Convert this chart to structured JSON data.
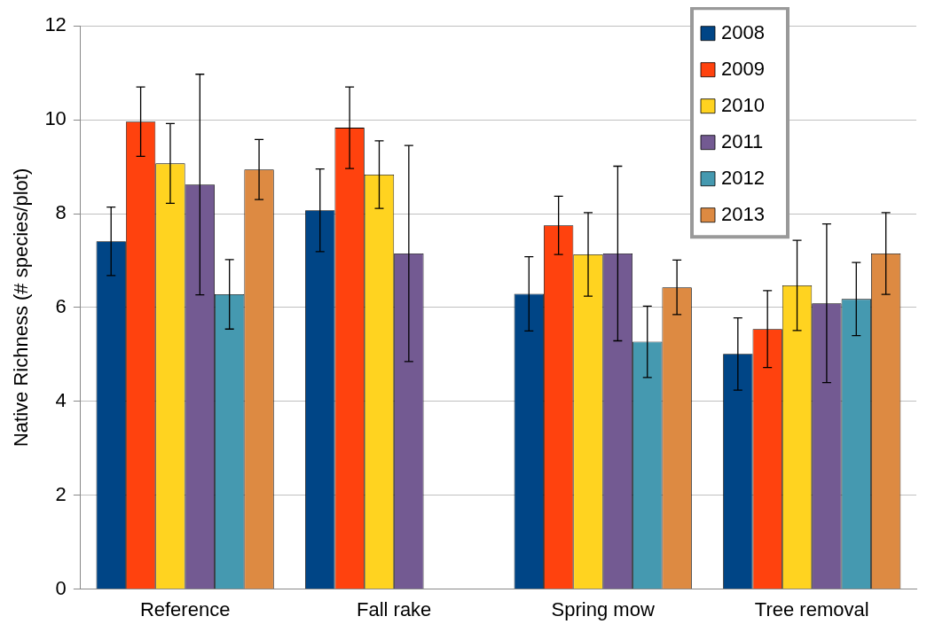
{
  "chart_data": {
    "type": "bar",
    "ylabel": "Native Richness (# species/plot)",
    "categories": [
      "Reference",
      "Fall rake",
      "Spring mow",
      "Tree removal"
    ],
    "series": [
      {
        "name": "2008",
        "color": "#004586",
        "values": [
          7.41,
          8.07,
          6.29,
          5.01
        ],
        "errors": [
          0.73,
          0.88,
          0.79,
          0.77
        ]
      },
      {
        "name": "2009",
        "color": "#ff420e",
        "values": [
          9.96,
          9.83,
          7.75,
          5.54
        ],
        "errors": [
          0.74,
          0.87,
          0.62,
          0.82
        ]
      },
      {
        "name": "2010",
        "color": "#ffd320",
        "values": [
          9.07,
          8.83,
          7.13,
          6.47
        ],
        "errors": [
          0.85,
          0.72,
          0.89,
          0.96
        ]
      },
      {
        "name": "2011",
        "color": "#735a92",
        "values": [
          8.62,
          7.15,
          7.15,
          6.09
        ],
        "errors": [
          2.35,
          2.3,
          1.86,
          1.69
        ]
      },
      {
        "name": "2012",
        "color": "#4599b0",
        "values": [
          6.28,
          0,
          5.27,
          6.18
        ],
        "errors": [
          0.74,
          null,
          0.76,
          0.78
        ]
      },
      {
        "name": "2013",
        "color": "#dd8a42",
        "values": [
          8.94,
          0,
          6.43,
          7.15
        ],
        "errors": [
          0.64,
          null,
          0.58,
          0.87
        ]
      }
    ],
    "ylim": [
      0,
      12
    ],
    "yticks": [
      0,
      2,
      4,
      6,
      8,
      10,
      12
    ],
    "grid": "y",
    "legend": "top right"
  }
}
